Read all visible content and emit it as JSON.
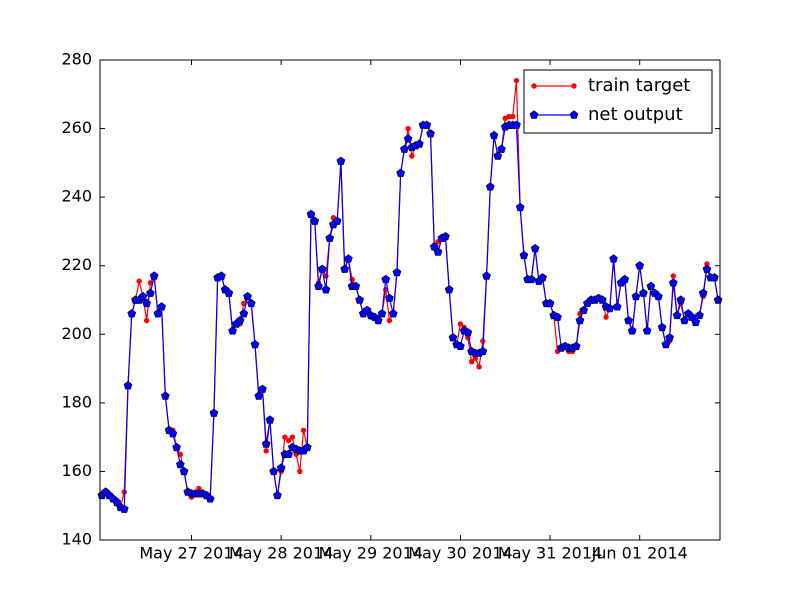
{
  "chart_data": {
    "type": "line",
    "x": [
      0,
      1,
      2,
      3,
      4,
      5,
      6,
      7,
      8,
      9,
      10,
      11,
      12,
      13,
      14,
      15,
      16,
      17,
      18,
      19,
      20,
      21,
      22,
      23,
      24,
      25,
      26,
      27,
      28,
      29,
      30,
      31,
      32,
      33,
      34,
      35,
      36,
      37,
      38,
      39,
      40,
      41,
      42,
      43,
      44,
      45,
      46,
      47,
      48,
      49,
      50,
      51,
      52,
      53,
      54,
      55,
      56,
      57,
      58,
      59,
      60,
      61,
      62,
      63,
      64,
      65,
      66,
      67,
      68,
      69,
      70,
      71,
      72,
      73,
      74,
      75,
      76,
      77,
      78,
      79,
      80,
      81,
      82,
      83,
      84,
      85,
      86,
      87,
      88,
      89,
      90,
      91,
      92,
      93,
      94,
      95,
      96,
      97,
      98,
      99,
      100,
      101,
      102,
      103,
      104,
      105,
      106,
      107,
      108,
      109,
      110,
      111,
      112,
      113,
      114,
      115,
      116,
      117,
      118,
      119,
      120,
      121,
      122,
      123,
      124,
      125,
      126,
      127,
      128,
      129,
      130,
      131,
      132,
      133,
      134,
      135,
      136,
      137,
      138,
      139,
      140,
      141,
      142,
      143,
      144,
      145,
      146,
      147,
      148,
      149,
      150,
      151,
      152,
      153,
      154,
      155,
      156,
      157,
      158,
      159,
      160,
      161,
      162,
      163,
      164,
      165
    ],
    "series": [
      {
        "name": "train target",
        "color": "#ff0000",
        "marker": "dot",
        "values": [
          153,
          154,
          153,
          152,
          151.5,
          149.5,
          154,
          185,
          206,
          210,
          215.5,
          211,
          204,
          215,
          217,
          206,
          208,
          182,
          172,
          172,
          167,
          165,
          160,
          154,
          152.5,
          153.5,
          155,
          153.5,
          153,
          152,
          177,
          216.5,
          217,
          213,
          212,
          201,
          203,
          203,
          209,
          211,
          209,
          197,
          182,
          184,
          166,
          175,
          160,
          153,
          160,
          170,
          169,
          170,
          165,
          160,
          172,
          167,
          235,
          233,
          215,
          219,
          217,
          228,
          234,
          233,
          250.5,
          219,
          222,
          216,
          214,
          210,
          206,
          207,
          205,
          205,
          204,
          206,
          213,
          204,
          206,
          218,
          247,
          254,
          260,
          252,
          255,
          255.5,
          261,
          261,
          258.5,
          226,
          227,
          228,
          228.5,
          213,
          199,
          197,
          203,
          202,
          199,
          192,
          193,
          190.5,
          198,
          217,
          243,
          258,
          252,
          254,
          263,
          263.5,
          263.5,
          274,
          237,
          223,
          216,
          216,
          225,
          215.5,
          216.5,
          209,
          209,
          205.5,
          195,
          196,
          196.5,
          195,
          195,
          196.5,
          206,
          207,
          209,
          210,
          210,
          210.5,
          210,
          205,
          207.5,
          222,
          208,
          215,
          216,
          204,
          201,
          211,
          220,
          212,
          201,
          214,
          212,
          211,
          202,
          197,
          198,
          217,
          205.5,
          209,
          204,
          206,
          205,
          203.5,
          205.5,
          211,
          220.5,
          216.5,
          216.5,
          210
        ]
      },
      {
        "name": "net output",
        "color": "#0000ff",
        "marker": "pentagon",
        "values": [
          153,
          154,
          153,
          152,
          151,
          149.5,
          149,
          185,
          206,
          210,
          210,
          211,
          209,
          212,
          217,
          206,
          208,
          182,
          172,
          171,
          167,
          162,
          160,
          154,
          153.5,
          153.5,
          153.5,
          153.5,
          153,
          152,
          177,
          216.5,
          217,
          213,
          212,
          201,
          203,
          204,
          206,
          211,
          209,
          197,
          182,
          184,
          168,
          175,
          160,
          153,
          161,
          165,
          165,
          167,
          166.5,
          166,
          166,
          167,
          235,
          233,
          214,
          219,
          213,
          228,
          232,
          233,
          250.5,
          219,
          222,
          214,
          214,
          210,
          206,
          207,
          205.5,
          205,
          204,
          206,
          216,
          210.5,
          206,
          218,
          247,
          254,
          257,
          254.5,
          255,
          255.5,
          261,
          261,
          258.5,
          225.5,
          224,
          228,
          228.5,
          213,
          199,
          197,
          196.5,
          201,
          200.5,
          195,
          194.5,
          194.5,
          195,
          217,
          243,
          258,
          252,
          254,
          260.5,
          261,
          261,
          261,
          237,
          223,
          216,
          216,
          225,
          215.5,
          216.5,
          209,
          209,
          205.5,
          205,
          196,
          196.5,
          196,
          196,
          196.5,
          204,
          207,
          209,
          210,
          210,
          210.5,
          210,
          208,
          207.5,
          222,
          208,
          215,
          216,
          204,
          201,
          211,
          220,
          212,
          201,
          214,
          212,
          211,
          202,
          197,
          199,
          215,
          205.5,
          210,
          204,
          206,
          205,
          203.5,
          205.5,
          212,
          219,
          216.5,
          216.5,
          210
        ]
      }
    ],
    "xlim": [
      -0.5,
      165.5
    ],
    "xticks": [
      {
        "value": 24,
        "label": "May 27 2014"
      },
      {
        "value": 48,
        "label": "May 28 2014"
      },
      {
        "value": 72,
        "label": "May 29 2014"
      },
      {
        "value": 96,
        "label": "May 30 2014"
      },
      {
        "value": 120,
        "label": "May 31 2014"
      },
      {
        "value": 144,
        "label": "Jun 01 2014"
      }
    ],
    "ylim": [
      140,
      280
    ],
    "yticks": [
      140,
      160,
      180,
      200,
      220,
      240,
      260,
      280
    ],
    "legend": "upper right"
  }
}
